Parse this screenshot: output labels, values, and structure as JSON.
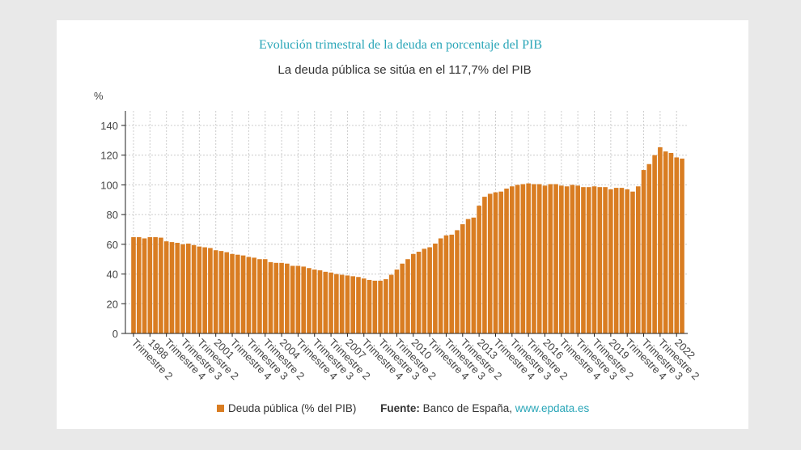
{
  "chart_data": {
    "type": "bar",
    "title": "Evolución trimestral de la deuda en porcentaje del PIB",
    "subtitle": "La deuda pública se sitúa en el 117,7% del PIB",
    "ylabel": "%",
    "ylim": [
      0,
      140
    ],
    "yticks": [
      0,
      20,
      40,
      60,
      80,
      100,
      120,
      140
    ],
    "grid": true,
    "legend_placement": "bottom",
    "bar_color": "#d97d22",
    "x_tick_labels": [
      "Trimestre 2",
      "1998",
      "Trimestre 4",
      "Trimestre 3",
      "Trimestre 2",
      "2001",
      "Trimestre 4",
      "Trimestre 3",
      "Trimestre 2",
      "2004",
      "Trimestre 4",
      "Trimestre 3",
      "Trimestre 2",
      "2007",
      "Trimestre 4",
      "Trimestre 3",
      "Trimestre 2",
      "2010",
      "Trimestre 4",
      "Trimestre 3",
      "Trimestre 2",
      "2013",
      "Trimestre 4",
      "Trimestre 3",
      "Trimestre 2",
      "2016",
      "Trimestre 4",
      "Trimestre 3",
      "Trimestre 2",
      "2019",
      "Trimestre 4",
      "Trimestre 3",
      "Trimestre 2",
      "2022"
    ],
    "series": [
      {
        "name": "Deuda pública (% del PIB)",
        "values": [
          64.8,
          64.8,
          64,
          64.8,
          64.8,
          64.5,
          62,
          61.5,
          61,
          60,
          60.5,
          59.5,
          58.5,
          58,
          57.5,
          56,
          55.5,
          54.7,
          53.5,
          53,
          52.5,
          51.5,
          51,
          50,
          50,
          48,
          47.5,
          47.5,
          47,
          45.5,
          45.5,
          45,
          44,
          43,
          42.5,
          41.5,
          41,
          40,
          39.5,
          39,
          38.5,
          38,
          37,
          36,
          35.5,
          35.5,
          36.5,
          39.5,
          43,
          47,
          50,
          53.5,
          55,
          57,
          58,
          60.5,
          64,
          66,
          66.5,
          69.5,
          73.5,
          77,
          78,
          86,
          92,
          94,
          95,
          95.5,
          97.5,
          99,
          100,
          100.5,
          101,
          100.5,
          100.5,
          99.5,
          100.5,
          100.5,
          99.5,
          99,
          100,
          99.5,
          98.5,
          98.5,
          99,
          98.5,
          98.5,
          97,
          98,
          98,
          97,
          95.5,
          99,
          110,
          114,
          120,
          125.3,
          122.5,
          121.5,
          118.5,
          117.7
        ]
      }
    ]
  },
  "legend": {
    "label": "Deuda pública (% del PIB)"
  },
  "source": {
    "label": "Fuente:",
    "text": "Banco de España,",
    "link": "www.epdata.es"
  }
}
